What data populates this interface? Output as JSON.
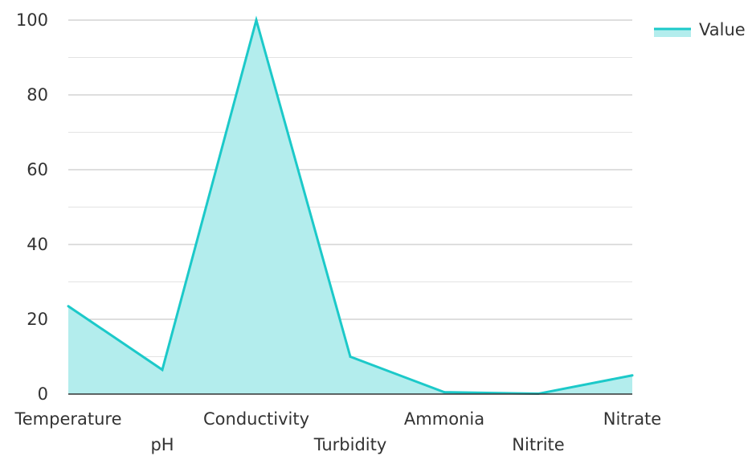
{
  "colors": {
    "line": "#1CC9C9",
    "fill": "#B3EDED",
    "grid_major": "#bdbdbd",
    "grid_minor": "#e3e3e3",
    "axis": "#333333",
    "text": "#333333"
  },
  "legend": {
    "label": "Value",
    "placement": "top-right"
  },
  "chart_data": {
    "type": "area",
    "categories": [
      "Temperature",
      "pH",
      "Conductivity",
      "Turbidity",
      "Ammonia",
      "Nitrite",
      "Nitrate"
    ],
    "series": [
      {
        "name": "Value",
        "values": [
          23.5,
          6.5,
          100,
          10,
          0.5,
          0.1,
          5
        ]
      }
    ],
    "y_ticks": [
      0,
      20,
      40,
      60,
      80,
      100
    ],
    "ylim": [
      0,
      100
    ],
    "grid": true,
    "title": "",
    "xlabel": "",
    "ylabel": ""
  }
}
